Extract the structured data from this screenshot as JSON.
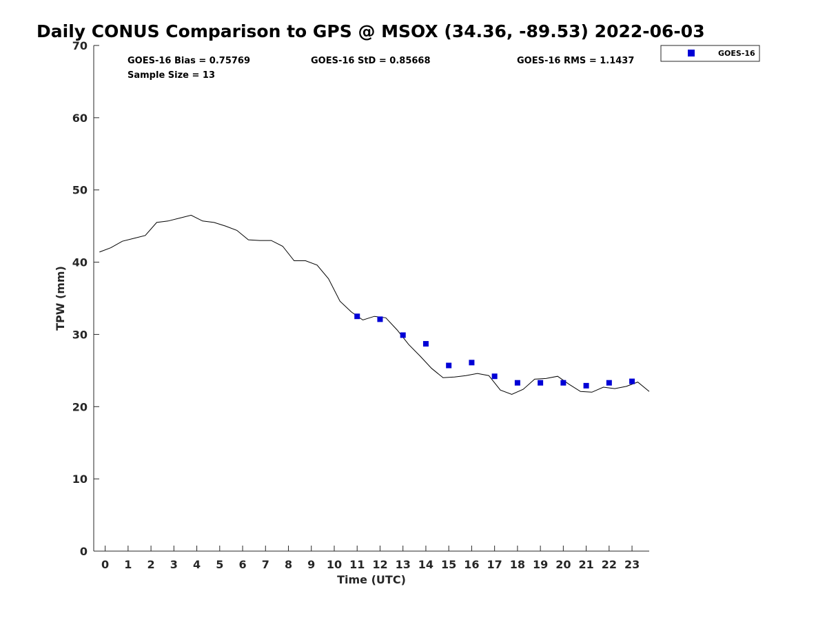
{
  "chart_data": {
    "type": "scatter",
    "title": "Daily CONUS Comparison to GPS @ MSOX (34.36, -89.53) 2022-06-03",
    "xlabel": "Time (UTC)",
    "ylabel": "TPW (mm)",
    "xlim": [
      -0.5,
      23.75
    ],
    "ylim": [
      0,
      70
    ],
    "x_ticks": [
      0,
      1,
      2,
      3,
      4,
      5,
      6,
      7,
      8,
      9,
      10,
      11,
      12,
      13,
      14,
      15,
      16,
      17,
      18,
      19,
      20,
      21,
      22,
      23
    ],
    "y_ticks": [
      0,
      10,
      20,
      30,
      40,
      50,
      60,
      70
    ],
    "grid": false,
    "legend_position": "top-right outside",
    "stats": {
      "bias": "GOES-16 Bias = 0.75769",
      "std": "GOES-16 StD = 0.85668",
      "rms": "GOES-16 RMS = 1.1437",
      "sample_size": "Sample Size = 13"
    },
    "series": [
      {
        "kind": "line",
        "color": "#000000",
        "x": [
          -0.25,
          0.25,
          0.75,
          1.25,
          1.75,
          2.25,
          2.75,
          3.25,
          3.75,
          4.25,
          4.75,
          5.25,
          5.75,
          6.25,
          6.75,
          7.25,
          7.75,
          8.25,
          8.75,
          9.25,
          9.75,
          10.25,
          10.75,
          11.25,
          11.75,
          12.25,
          12.75,
          13.25,
          13.75,
          14.25,
          14.75,
          15.25,
          15.75,
          16.25,
          16.75,
          17.25,
          17.75,
          18.25,
          18.75,
          19.25,
          19.75,
          20.25,
          20.75,
          21.25,
          21.75,
          22.25,
          22.75,
          23.25,
          23.75
        ],
        "y": [
          41.4,
          42.0,
          42.9,
          43.3,
          43.7,
          45.5,
          45.7,
          46.1,
          46.5,
          45.7,
          45.5,
          45.0,
          44.4,
          43.1,
          43.0,
          43.0,
          42.2,
          40.2,
          40.2,
          39.6,
          37.7,
          34.6,
          33.1,
          32.0,
          32.5,
          32.3,
          30.6,
          28.6,
          27.0,
          25.3,
          24.0,
          24.1,
          24.3,
          24.6,
          24.3,
          22.3,
          21.7,
          22.4,
          23.8,
          23.9,
          24.2,
          23.1,
          22.1,
          22.0,
          22.7,
          22.5,
          22.8,
          23.4,
          22.1
        ]
      },
      {
        "kind": "scatter",
        "name": "GOES-16",
        "color": "#0000d6",
        "x": [
          11,
          12,
          13,
          14,
          15,
          16,
          17,
          18,
          19,
          20,
          21,
          22,
          23
        ],
        "y": [
          32.5,
          32.1,
          29.9,
          28.7,
          25.7,
          26.1,
          24.2,
          23.3,
          23.3,
          23.3,
          22.9,
          23.3,
          23.5
        ]
      }
    ]
  }
}
